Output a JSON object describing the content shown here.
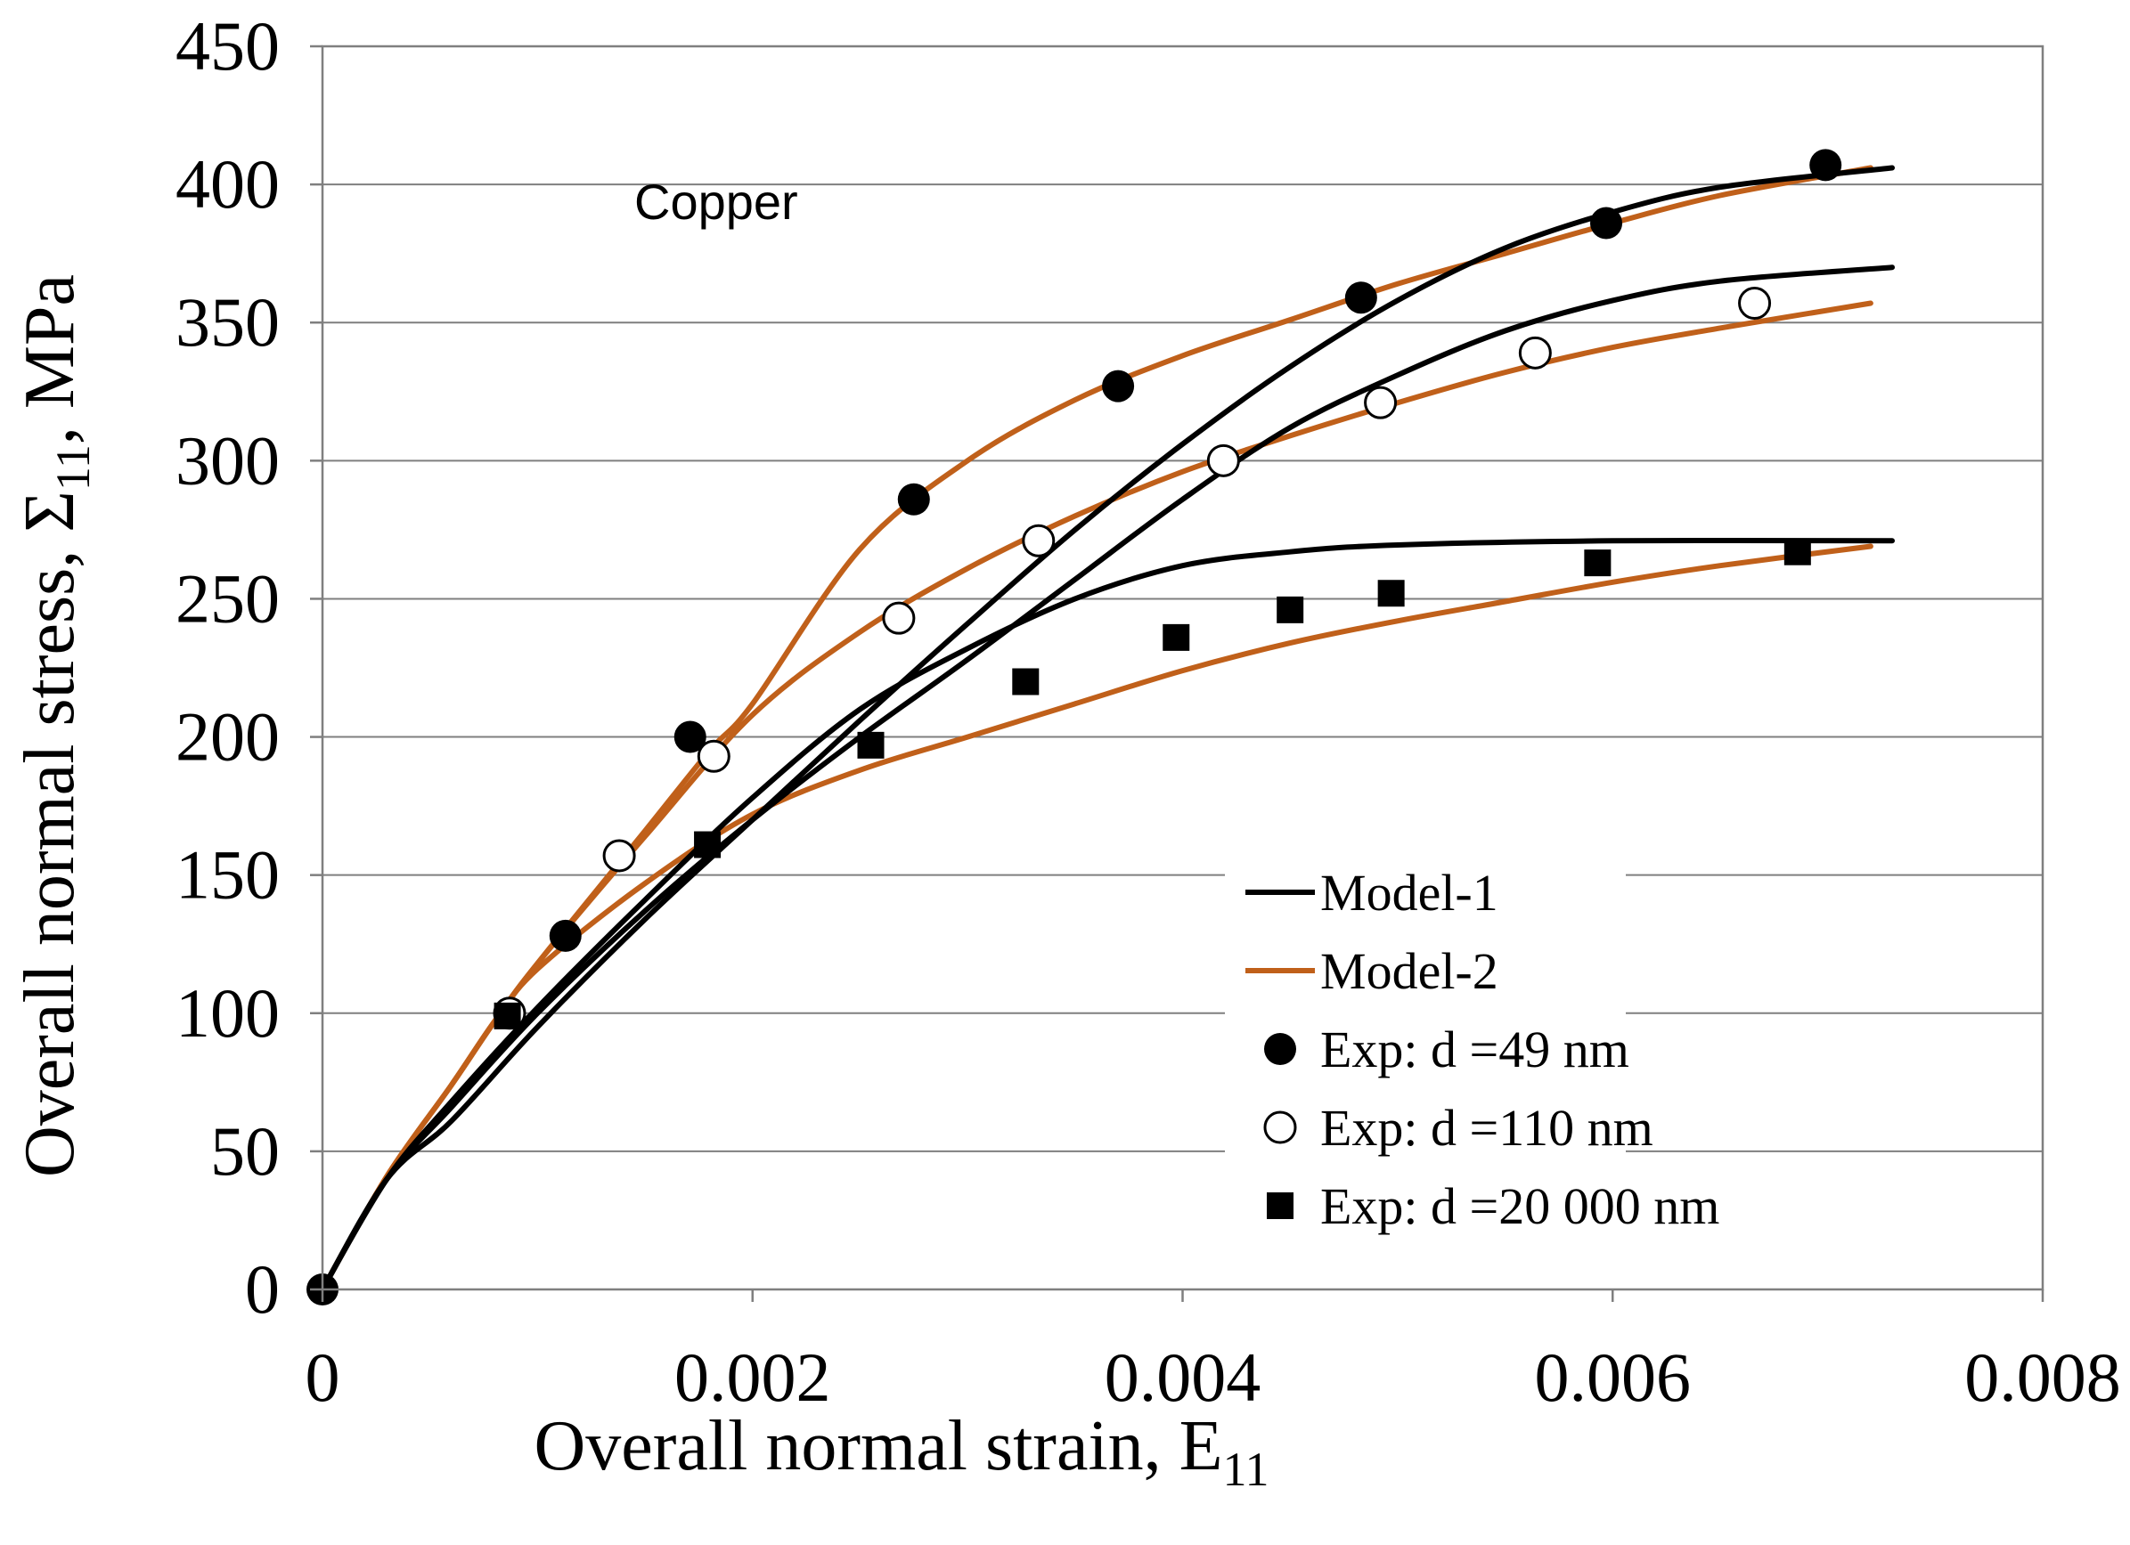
{
  "chart_data": {
    "type": "line",
    "title": "",
    "annotation": "Copper",
    "xlabel": "Overall normal strain, E",
    "xlabel_sub": "11",
    "ylabel": "Overall normal stress, Σ",
    "ylabel_sub": "11",
    "ylabel_unit": ", MPa",
    "xlim": [
      0,
      0.008
    ],
    "ylim": [
      0,
      450
    ],
    "xticks": [
      0,
      0.002,
      0.004,
      0.006,
      0.008
    ],
    "xtick_labels": [
      "0",
      "0.002",
      "0.004",
      "0.006",
      "0.008"
    ],
    "yticks": [
      0,
      50,
      100,
      150,
      200,
      250,
      300,
      350,
      400,
      450
    ],
    "ytick_labels": [
      "0",
      "50",
      "100",
      "150",
      "200",
      "250",
      "300",
      "350",
      "400",
      "450"
    ],
    "grid": "horizontal",
    "legend_position": "bottom-right",
    "colors": {
      "model1": "#000000",
      "model2": "#c0601a",
      "grid": "#7f7f7f"
    },
    "series": [
      {
        "name": "Model-1",
        "kind": "line",
        "color": "#000000",
        "points": [
          [
            0,
            0
          ],
          [
            0.0003,
            40
          ],
          [
            0.0006,
            68
          ],
          [
            0.001,
            102
          ],
          [
            0.0015,
            141
          ],
          [
            0.002,
            178
          ],
          [
            0.0025,
            210
          ],
          [
            0.003,
            232
          ],
          [
            0.0035,
            250
          ],
          [
            0.004,
            262
          ],
          [
            0.0045,
            267
          ],
          [
            0.005,
            269.5
          ],
          [
            0.006,
            271
          ],
          [
            0.0073,
            271
          ]
        ]
      },
      {
        "name": "Model-1",
        "kind": "line",
        "color": "#000000",
        "points": [
          [
            0,
            0
          ],
          [
            0.0003,
            40
          ],
          [
            0.0006,
            66
          ],
          [
            0.001,
            100
          ],
          [
            0.0015,
            137
          ],
          [
            0.002,
            170
          ],
          [
            0.0025,
            200
          ],
          [
            0.003,
            228
          ],
          [
            0.0035,
            257
          ],
          [
            0.004,
            286
          ],
          [
            0.0045,
            312
          ],
          [
            0.005,
            331
          ],
          [
            0.0055,
            347
          ],
          [
            0.006,
            358
          ],
          [
            0.0065,
            365
          ],
          [
            0.0073,
            370
          ]
        ]
      },
      {
        "name": "Model-1",
        "kind": "line",
        "color": "#000000",
        "points": [
          [
            0,
            0
          ],
          [
            0.0003,
            40
          ],
          [
            0.0006,
            61
          ],
          [
            0.001,
            95
          ],
          [
            0.0015,
            134
          ],
          [
            0.002,
            170
          ],
          [
            0.0025,
            206
          ],
          [
            0.003,
            241
          ],
          [
            0.0035,
            275
          ],
          [
            0.004,
            306
          ],
          [
            0.0045,
            334
          ],
          [
            0.005,
            358
          ],
          [
            0.0055,
            377
          ],
          [
            0.006,
            390
          ],
          [
            0.0065,
            399
          ],
          [
            0.0073,
            406
          ]
        ]
      },
      {
        "name": "Model-2",
        "kind": "line",
        "color": "#c0601a",
        "points": [
          [
            0,
            0
          ],
          [
            0.0003,
            41
          ],
          [
            0.0006,
            74
          ],
          [
            0.0008,
            97
          ],
          [
            0.001,
            116
          ],
          [
            0.0015,
            147
          ],
          [
            0.002,
            172
          ],
          [
            0.0025,
            188
          ],
          [
            0.003,
            200
          ],
          [
            0.0035,
            212
          ],
          [
            0.004,
            224
          ],
          [
            0.0045,
            234
          ],
          [
            0.005,
            242
          ],
          [
            0.0055,
            249
          ],
          [
            0.006,
            256
          ],
          [
            0.0065,
            262
          ],
          [
            0.0072,
            269
          ]
        ]
      },
      {
        "name": "Model-2",
        "kind": "line",
        "color": "#c0601a",
        "points": [
          [
            0,
            0
          ],
          [
            0.0003,
            41
          ],
          [
            0.0006,
            74
          ],
          [
            0.0008,
            97
          ],
          [
            0.001,
            118
          ],
          [
            0.0015,
            164
          ],
          [
            0.002,
            208
          ],
          [
            0.0025,
            238
          ],
          [
            0.003,
            261
          ],
          [
            0.0035,
            280
          ],
          [
            0.004,
            296
          ],
          [
            0.0045,
            309
          ],
          [
            0.005,
            321
          ],
          [
            0.0055,
            332
          ],
          [
            0.006,
            341
          ],
          [
            0.0065,
            348
          ],
          [
            0.0072,
            357
          ]
        ]
      },
      {
        "name": "Model-2",
        "kind": "line",
        "color": "#c0601a",
        "points": [
          [
            0,
            0
          ],
          [
            0.0003,
            41
          ],
          [
            0.0006,
            74
          ],
          [
            0.0008,
            97
          ],
          [
            0.001,
            118
          ],
          [
            0.0015,
            166
          ],
          [
            0.0018,
            195
          ],
          [
            0.002,
            212
          ],
          [
            0.0025,
            268
          ],
          [
            0.003,
            300
          ],
          [
            0.0035,
            322
          ],
          [
            0.004,
            338
          ],
          [
            0.0045,
            351
          ],
          [
            0.005,
            364
          ],
          [
            0.0055,
            375
          ],
          [
            0.006,
            386
          ],
          [
            0.0065,
            396
          ],
          [
            0.0072,
            406
          ]
        ]
      },
      {
        "name": "Exp: d =49 nm",
        "kind": "marker",
        "marker": "filled-circle",
        "points": [
          [
            0,
            0
          ],
          [
            0.00113,
            128
          ],
          [
            0.00171,
            200
          ],
          [
            0.00275,
            286
          ],
          [
            0.0037,
            327
          ],
          [
            0.00483,
            359
          ],
          [
            0.00597,
            386
          ],
          [
            0.00699,
            407
          ]
        ]
      },
      {
        "name": "Exp: d =110 nm",
        "kind": "marker",
        "marker": "open-circle",
        "points": [
          [
            0.00087,
            100
          ],
          [
            0.00138,
            157
          ],
          [
            0.00182,
            193
          ],
          [
            0.00268,
            243
          ],
          [
            0.00333,
            271
          ],
          [
            0.00419,
            300
          ],
          [
            0.00492,
            321
          ],
          [
            0.00564,
            339
          ],
          [
            0.00666,
            357
          ]
        ]
      },
      {
        "name": "Exp: d =20 000 nm",
        "kind": "marker",
        "marker": "filled-square",
        "points": [
          [
            0.00086,
            99
          ],
          [
            0.00179,
            161
          ],
          [
            0.00255,
            197
          ],
          [
            0.00327,
            220
          ],
          [
            0.00397,
            236
          ],
          [
            0.0045,
            246
          ],
          [
            0.00497,
            252
          ],
          [
            0.00593,
            263
          ],
          [
            0.00686,
            267
          ]
        ]
      }
    ],
    "legend": [
      {
        "label": "Model-1",
        "kind": "line",
        "color": "#000000"
      },
      {
        "label": "Model-2",
        "kind": "line",
        "color": "#c0601a"
      },
      {
        "label": "Exp: d =49 nm",
        "kind": "marker",
        "marker": "filled-circle"
      },
      {
        "label": "Exp: d =110 nm",
        "kind": "marker",
        "marker": "open-circle"
      },
      {
        "label": "Exp: d =20 000 nm",
        "kind": "marker",
        "marker": "filled-square"
      }
    ]
  }
}
